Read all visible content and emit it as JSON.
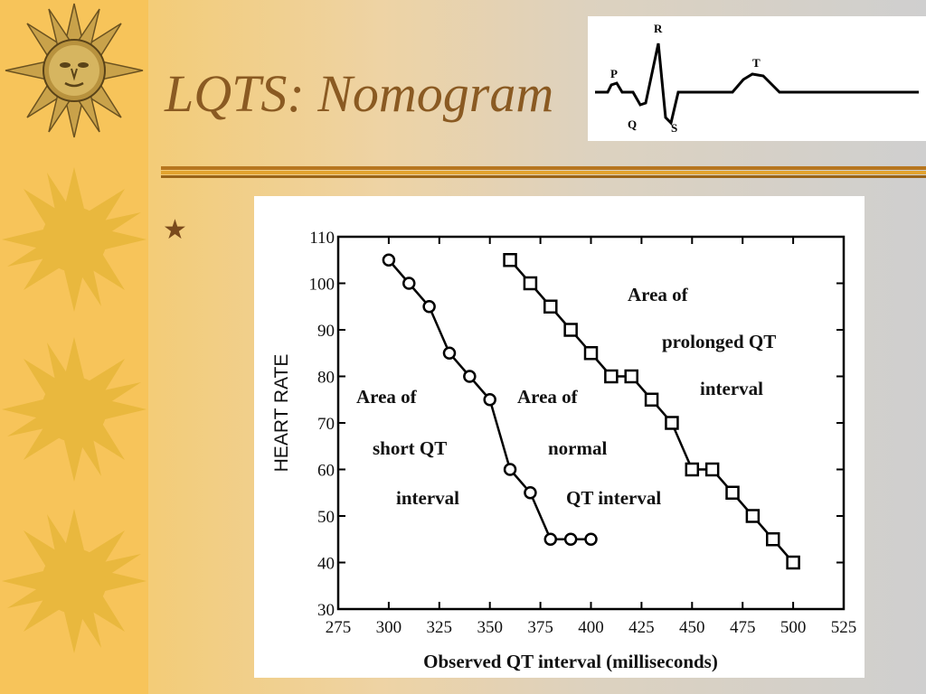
{
  "slide": {
    "title": "LQTS: Nomogram",
    "bullet": "★"
  },
  "ecg": {
    "labels": [
      "P",
      "Q",
      "R",
      "S",
      "T"
    ]
  },
  "chart_data": {
    "type": "line",
    "title": "",
    "xlabel": "Observed QT interval (milliseconds)",
    "ylabel": "HEART RATE",
    "xlim": [
      275,
      525
    ],
    "ylim": [
      30,
      110
    ],
    "xticks": [
      275,
      300,
      325,
      350,
      375,
      400,
      425,
      450,
      475,
      500,
      525
    ],
    "yticks": [
      30,
      40,
      50,
      60,
      70,
      80,
      90,
      100,
      110
    ],
    "grid": false,
    "series": [
      {
        "marker": "circle",
        "points": [
          [
            300,
            105
          ],
          [
            310,
            100
          ],
          [
            320,
            95
          ],
          [
            330,
            85
          ],
          [
            340,
            80
          ],
          [
            350,
            75
          ],
          [
            360,
            60
          ],
          [
            370,
            55
          ],
          [
            380,
            45
          ],
          [
            390,
            45
          ],
          [
            400,
            45
          ]
        ]
      },
      {
        "marker": "square",
        "points": [
          [
            360,
            105
          ],
          [
            370,
            100
          ],
          [
            380,
            95
          ],
          [
            390,
            90
          ],
          [
            400,
            85
          ],
          [
            410,
            80
          ],
          [
            420,
            80
          ],
          [
            430,
            75
          ],
          [
            440,
            70
          ],
          [
            450,
            60
          ],
          [
            460,
            60
          ],
          [
            470,
            55
          ],
          [
            480,
            50
          ],
          [
            490,
            45
          ],
          [
            500,
            40
          ]
        ]
      }
    ],
    "annotations": {
      "short": [
        "Area of",
        "short QT",
        "interval"
      ],
      "normal": [
        "Area of",
        "normal",
        "QT  interval"
      ],
      "prolonged": [
        "Area of",
        "prolonged QT",
        "interval"
      ]
    }
  }
}
